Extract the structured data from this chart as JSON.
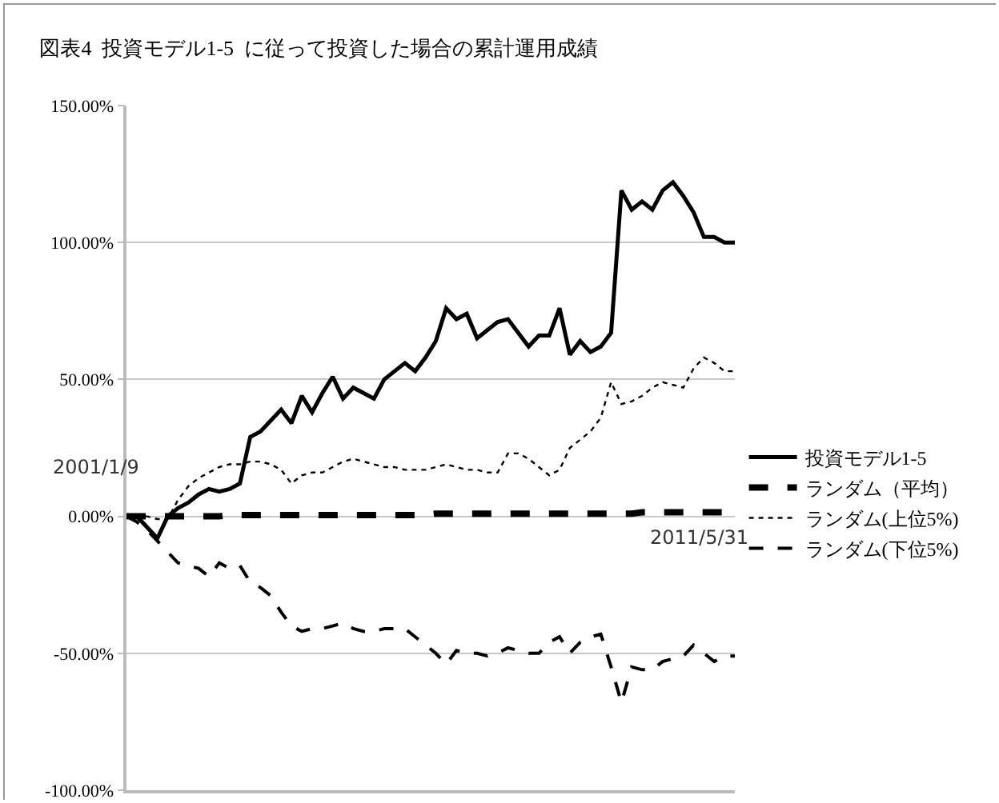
{
  "chart_data": {
    "type": "line",
    "title": "図表4  投資モデル1-5  に従って投資した場合の累計運用成績",
    "categories": [
      null,
      null,
      null,
      null,
      null,
      null,
      null,
      null,
      null,
      null,
      null,
      null,
      null,
      null,
      null,
      null,
      null,
      null,
      null,
      null,
      null,
      null,
      null,
      null,
      null,
      null,
      null,
      null,
      null,
      null,
      null,
      null,
      null,
      null,
      null,
      null,
      null,
      null,
      null,
      null,
      null,
      null,
      null,
      null,
      null,
      null,
      null,
      null,
      null,
      null,
      null,
      null,
      null,
      null,
      null,
      null,
      null,
      null,
      null,
      null
    ],
    "ylim": [
      -100,
      150
    ],
    "yticks": [
      {
        "value": -100,
        "label": "-100.00%"
      },
      {
        "value": -50,
        "label": "-50.00%"
      },
      {
        "value": 0,
        "label": "0.00%"
      },
      {
        "value": 50,
        "label": "50.00%"
      },
      {
        "value": 100,
        "label": "100.00%"
      },
      {
        "value": 150,
        "label": "150.00%"
      }
    ],
    "tick_labels": "y",
    "grid": "y",
    "legend": "right",
    "marker": "none",
    "annotations": [
      "2001/1/9",
      "2011/5/31"
    ],
    "series": [
      {
        "name": "投資モデル1-5",
        "color": "#000000",
        "line_style": "solid",
        "values": [
          0,
          0,
          -4,
          -8,
          0,
          3,
          5,
          8,
          10,
          9,
          10,
          12,
          29,
          31,
          35,
          39,
          34,
          44,
          38,
          45,
          51,
          43,
          47,
          45,
          43,
          50,
          53,
          56,
          53,
          58,
          64,
          76,
          72,
          74,
          65,
          68,
          71,
          72,
          67,
          62,
          66,
          66,
          76,
          59,
          64,
          60,
          62,
          67,
          119,
          112,
          115,
          112,
          119,
          122,
          117,
          111,
          102,
          102,
          100,
          100
        ]
      },
      {
        "name": "ランダム（平均）",
        "color": "#000000",
        "line_style": "dashed",
        "values": [
          0,
          0,
          0,
          0,
          0,
          0,
          0,
          0,
          0,
          0,
          0.5,
          0.5,
          0.5,
          0.5,
          0.5,
          0.5,
          0.5,
          0.5,
          0.5,
          0.5,
          0.5,
          0.5,
          0.5,
          0.5,
          0.5,
          0.5,
          0.5,
          0.5,
          0.5,
          0.5,
          1,
          1,
          1,
          1,
          1,
          1,
          1,
          1,
          1,
          1,
          1,
          1,
          1,
          1,
          1,
          1,
          1,
          1,
          1,
          1,
          1.5,
          1.5,
          1.5,
          1.5,
          1.5,
          1.5,
          1.5,
          1.5,
          1.5,
          1.5
        ]
      },
      {
        "name": "ランダム(上位5%)",
        "color": "#000000",
        "line_style": "dotted",
        "values": [
          0,
          0,
          0,
          -1,
          -1,
          6,
          11,
          14,
          16,
          18,
          19,
          19,
          20,
          20,
          19,
          17,
          12,
          15,
          16,
          16,
          18,
          20,
          21,
          20,
          19,
          18,
          18,
          17,
          17,
          17,
          18,
          19,
          18,
          17,
          17,
          16,
          16,
          23,
          23,
          21,
          18,
          15,
          17,
          25,
          28,
          31,
          36,
          49,
          41,
          42,
          44,
          47,
          49,
          48,
          47,
          54,
          58,
          56,
          53,
          53
        ]
      },
      {
        "name": "ランダム(下位5%)",
        "color": "#000000",
        "line_style": "dashed",
        "values": [
          0,
          -2,
          -5,
          -9,
          -13,
          -17,
          -18,
          -19,
          -22,
          -17,
          -19,
          -18,
          -24,
          -26,
          -29,
          -35,
          -40,
          -42,
          -41,
          -41,
          -40,
          -39,
          -41,
          -42,
          -42,
          -41,
          -41,
          -41,
          -44,
          -47,
          -50,
          -54,
          -49,
          -50,
          -50,
          -51,
          -50,
          -48,
          -49,
          -50,
          -50,
          -46,
          -44,
          -50,
          -46,
          -44,
          -43,
          -55,
          -68,
          -55,
          -56,
          -56,
          -53,
          -52,
          -51,
          -47,
          -50,
          -53,
          -51,
          -51
        ]
      }
    ]
  }
}
